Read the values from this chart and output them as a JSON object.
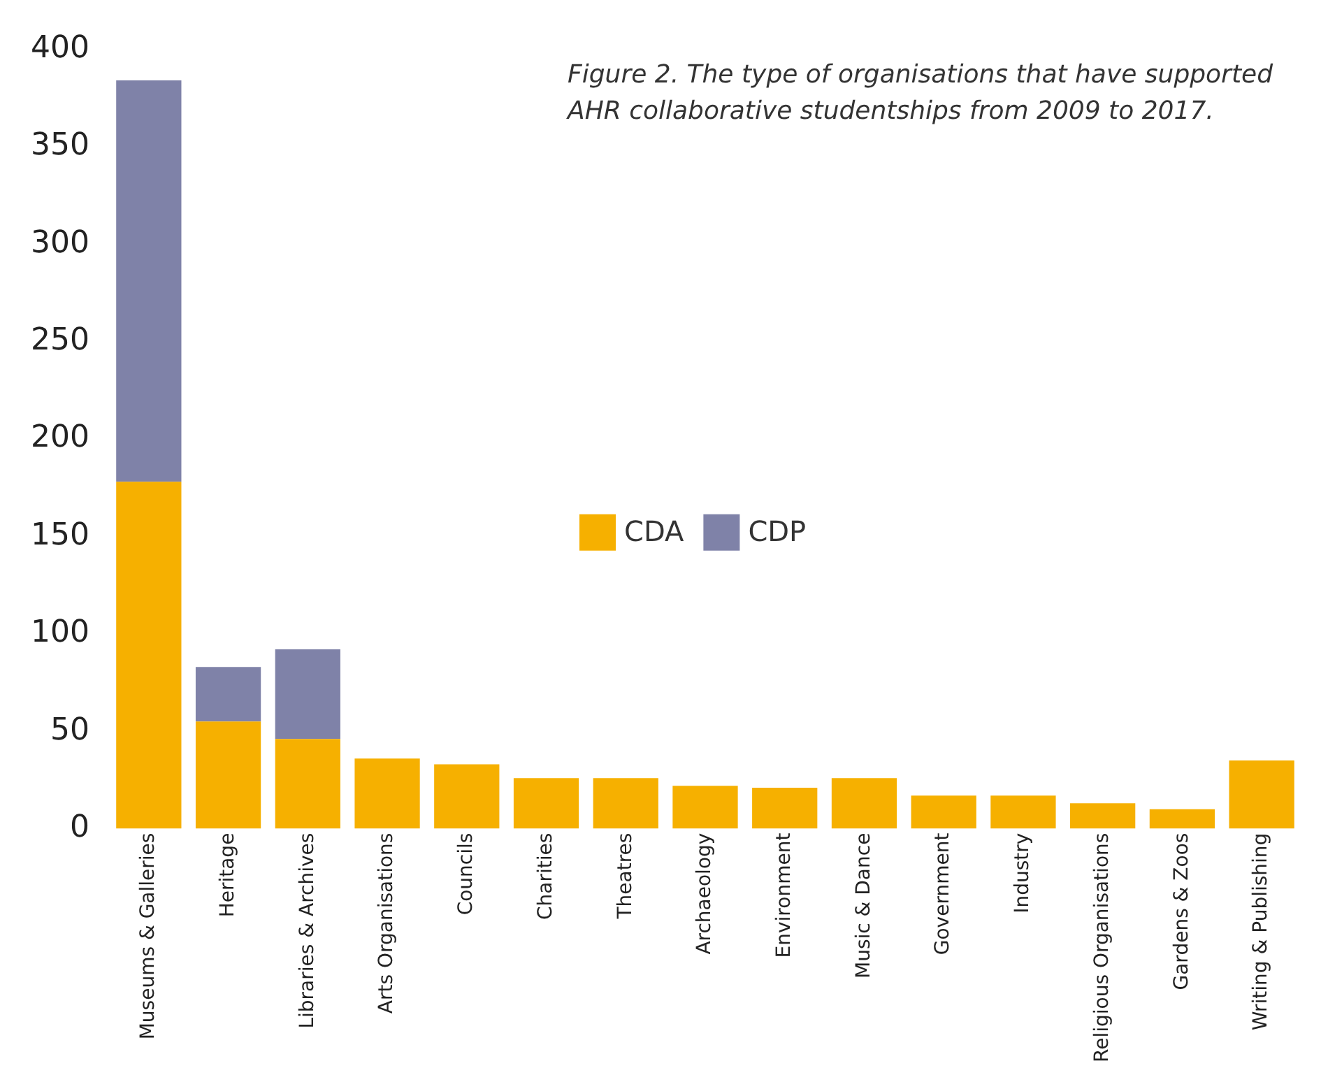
{
  "chart_data": {
    "type": "bar",
    "title": "Figure 2. The type of organisations that have supported AHR collaborative studentships from 2009 to 2017.",
    "categories": [
      "Museums & Galleries",
      "Heritage",
      "Libraries & Archives",
      "Arts Organisations",
      "Councils",
      "Charities",
      "Theatres",
      "Archaeology",
      "Environment",
      "Music & Dance",
      "Government",
      "Industry",
      "Religious Organisations",
      "Gardens & Zoos",
      "Writing & Publishing"
    ],
    "stacked": true,
    "series": [
      {
        "name": "CDA",
        "color": "#f6b000",
        "values": [
          178,
          55,
          46,
          36,
          33,
          26,
          26,
          22,
          21,
          26,
          17,
          17,
          13,
          10,
          35
        ]
      },
      {
        "name": "CDP",
        "color": "#7f82a8",
        "values": [
          206,
          28,
          46,
          null,
          null,
          null,
          null,
          null,
          null,
          null,
          null,
          null,
          null,
          null,
          null
        ]
      }
    ],
    "ylim": [
      0,
      400
    ],
    "yticks": [
      0,
      50,
      100,
      150,
      200,
      250,
      300,
      350,
      400
    ],
    "grid": false,
    "legend": "center"
  }
}
